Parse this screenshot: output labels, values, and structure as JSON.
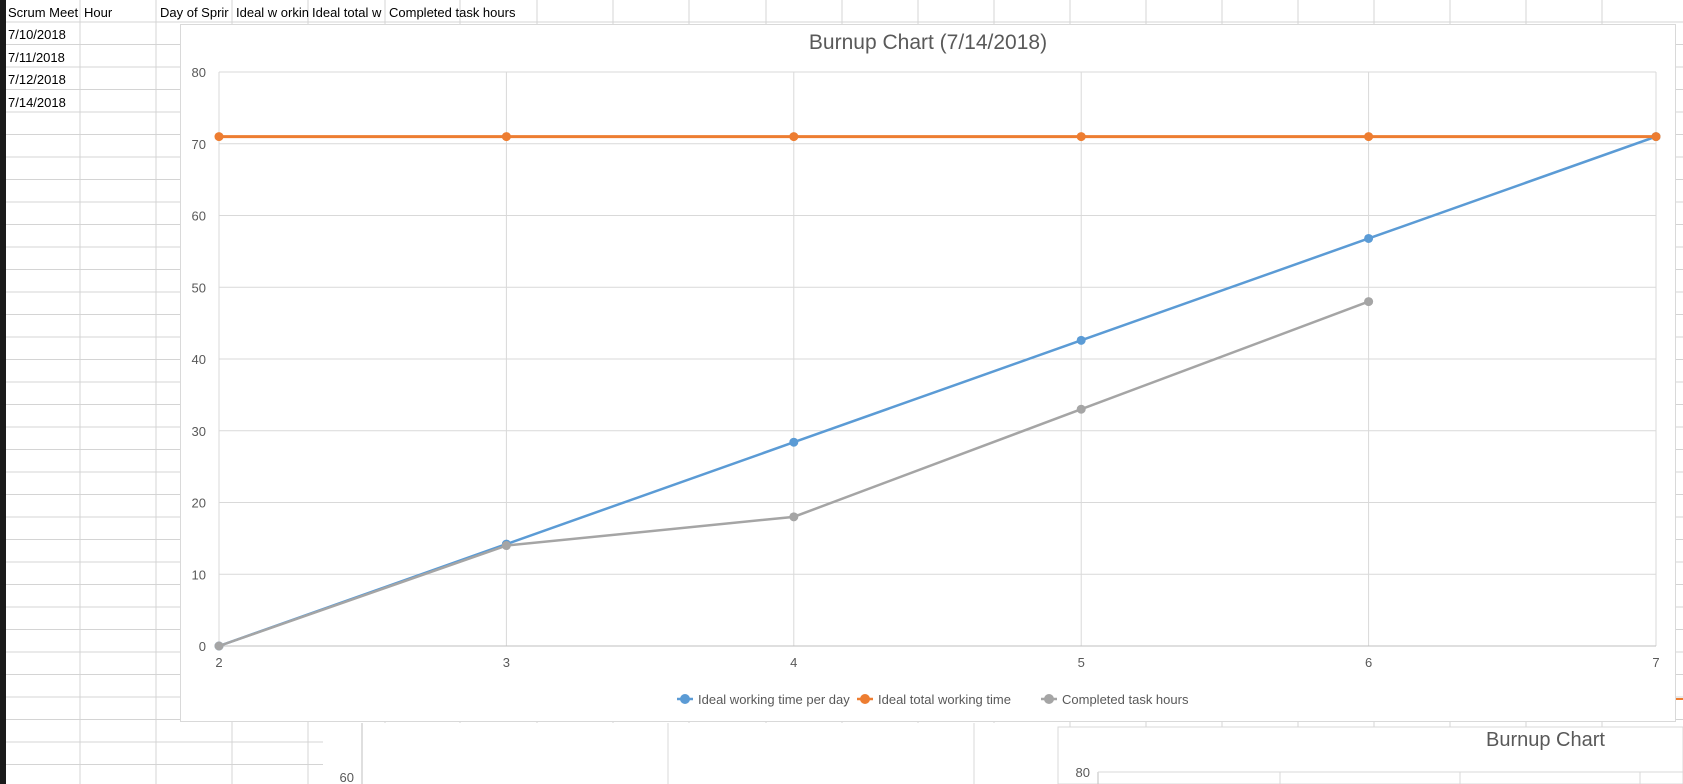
{
  "sheet": {
    "headers": [
      "Scrum Meet",
      "Hour",
      "Day of Sprir",
      "Ideal w orkin",
      "Ideal total w",
      "Completed task hours"
    ],
    "rows": [
      {
        "date": "7/10/2018"
      },
      {
        "date": "7/11/2018"
      },
      {
        "date": "7/12/2018"
      },
      {
        "date": "7/14/2018"
      }
    ]
  },
  "chart_data": [
    {
      "type": "line",
      "title": "Burnup Chart (7/14/2018)",
      "xlabel": "",
      "ylabel": "",
      "x": [
        2,
        3,
        4,
        5,
        6,
        7
      ],
      "xlim": [
        2,
        7
      ],
      "ylim": [
        0,
        80
      ],
      "y_ticks": [
        0,
        10,
        20,
        30,
        40,
        50,
        60,
        70,
        80
      ],
      "grid": true,
      "legend": "bottom",
      "series": [
        {
          "name": "Ideal working time per day",
          "color": "#5b9bd5",
          "values": [
            0,
            14.2,
            28.4,
            42.6,
            56.8,
            71
          ]
        },
        {
          "name": "Ideal total working time",
          "color": "#ed7d31",
          "values": [
            71,
            71,
            71,
            71,
            71,
            71
          ]
        },
        {
          "name": "Completed task hours",
          "color": "#a5a5a5",
          "values": [
            0,
            14,
            18,
            33,
            48,
            null
          ]
        }
      ]
    },
    {
      "type": "line",
      "title": "",
      "y_ticks_visible": [
        "60"
      ]
    },
    {
      "type": "line",
      "title": "Burnup Chart",
      "y_ticks_visible": [
        "80"
      ]
    }
  ]
}
